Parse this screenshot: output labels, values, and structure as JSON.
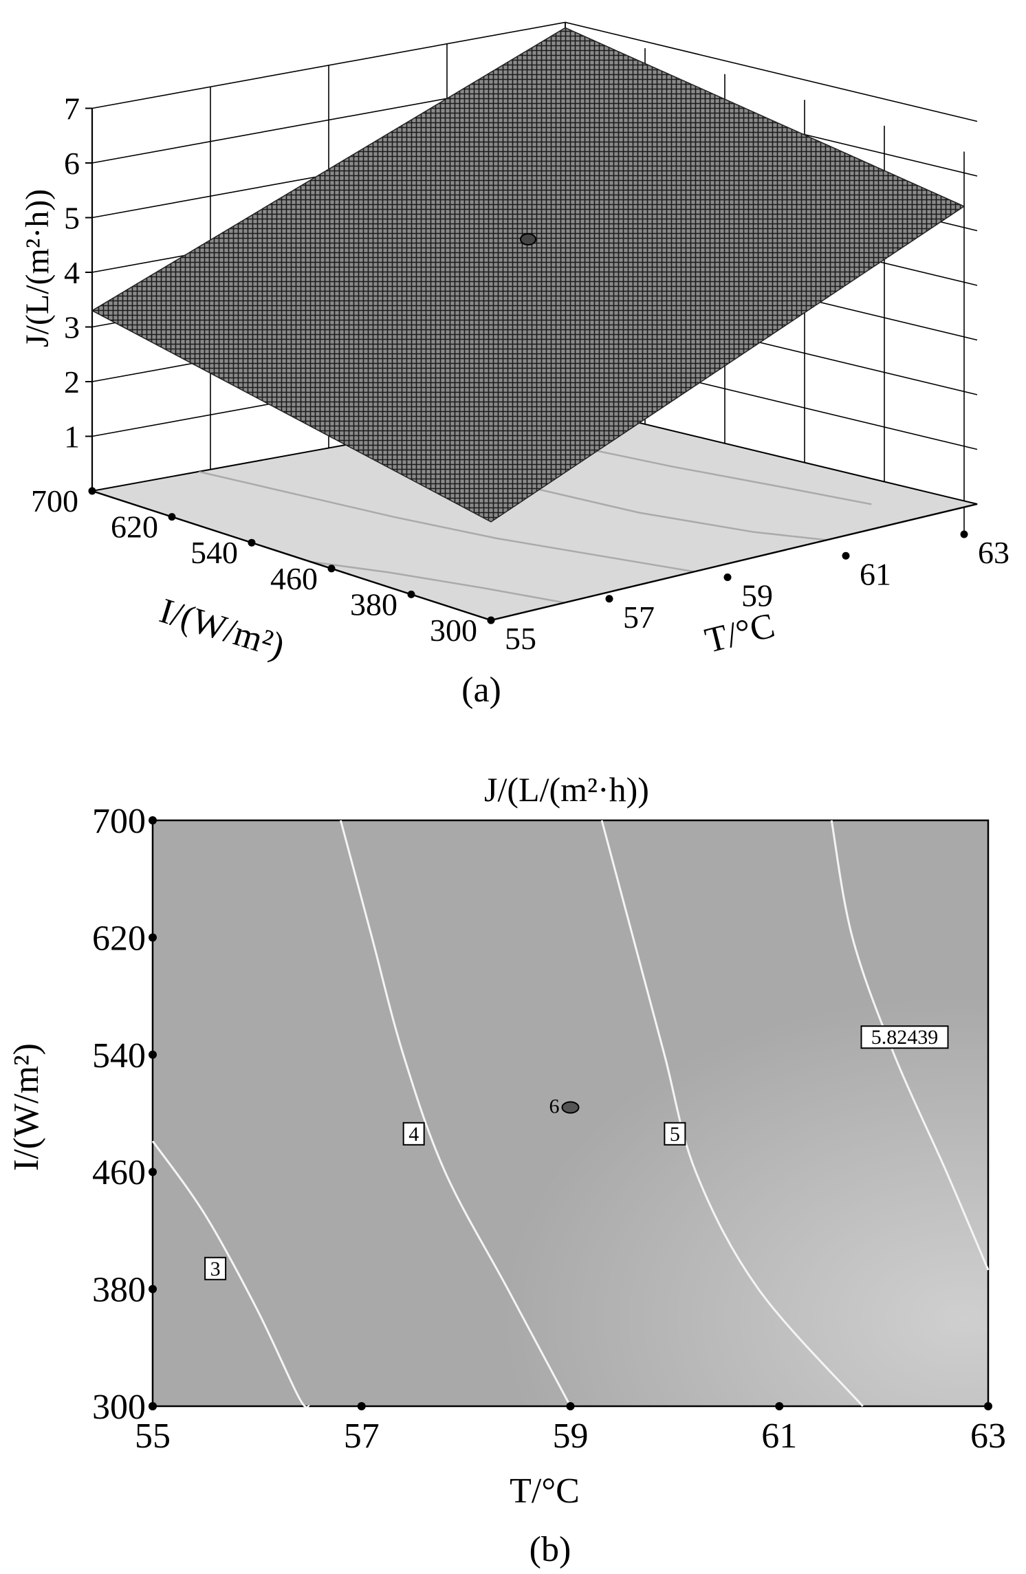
{
  "chart_data": [
    {
      "type": "surface3d",
      "panel_label": "(a)",
      "zlabel": "J/(L/(m²·h))",
      "xlabel": "T/°C",
      "ylabel": "I/(W/m²)",
      "x_ticks": [
        55,
        57,
        59,
        61,
        63
      ],
      "y_ticks": [
        300,
        380,
        460,
        540,
        620,
        700
      ],
      "z_ticks": [
        1,
        2,
        3,
        4,
        5,
        6,
        7
      ],
      "xlim": [
        55,
        63
      ],
      "ylim": [
        300,
        700
      ],
      "zlim": [
        0,
        7
      ],
      "corner_values": [
        {
          "T": 55,
          "I": 300,
          "J": 1.8
        },
        {
          "T": 63,
          "I": 300,
          "J": 6.0
        },
        {
          "T": 63,
          "I": 700,
          "J": 6.9
        },
        {
          "T": 55,
          "I": 700,
          "J": 3.3
        }
      ],
      "center_point": {
        "T": 59,
        "I": 500,
        "J": 5.0
      },
      "grid": true
    },
    {
      "type": "contour",
      "panel_label": "(b)",
      "title": "J/(L/(m²·h))",
      "xlabel": "T/°C",
      "ylabel": "I/(W/m²)",
      "x_ticks": [
        55,
        57,
        59,
        61,
        63
      ],
      "y_ticks": [
        300,
        380,
        460,
        540,
        620,
        700
      ],
      "xlim": [
        55,
        63
      ],
      "ylim": [
        300,
        700
      ],
      "contours": [
        {
          "level": "3",
          "label_at": {
            "T": 55.6,
            "I": 394
          },
          "points": [
            [
              55.0,
              481
            ],
            [
              55.5,
              431
            ],
            [
              56.0,
              366
            ],
            [
              56.4,
              306
            ],
            [
              56.5,
              300
            ]
          ]
        },
        {
          "level": "4",
          "label_at": {
            "T": 57.5,
            "I": 486
          },
          "points": [
            [
              56.8,
              700
            ],
            [
              57.1,
              620
            ],
            [
              57.4,
              540
            ],
            [
              57.8,
              460
            ],
            [
              58.4,
              380
            ],
            [
              59.0,
              300
            ]
          ]
        },
        {
          "level": "5",
          "label_at": {
            "T": 60.0,
            "I": 486
          },
          "points": [
            [
              59.3,
              700
            ],
            [
              59.6,
              620
            ],
            [
              59.9,
              540
            ],
            [
              60.2,
              460
            ],
            [
              60.8,
              380
            ],
            [
              61.8,
              300
            ]
          ]
        },
        {
          "level": "5.82439",
          "label_at": {
            "T": 62.2,
            "I": 552
          },
          "points": [
            [
              61.5,
              700
            ],
            [
              61.7,
              620
            ],
            [
              62.1,
              540
            ],
            [
              62.6,
              460
            ],
            [
              63.0,
              393
            ]
          ]
        }
      ],
      "center_point": {
        "T": 59,
        "I": 504,
        "label": "6"
      }
    }
  ]
}
